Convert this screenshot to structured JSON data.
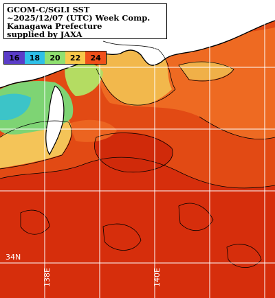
{
  "info": {
    "line1": "GCOM-C/SGLI SST",
    "line2": "~2025/12/07 (UTC) Week Comp.",
    "line3": "Kanagawa Prefecture",
    "line4": "supplied by JAXA"
  },
  "legend": {
    "items": [
      {
        "label": "16",
        "color": "#5a3cc8"
      },
      {
        "label": "18",
        "color": "#2ec0e8"
      },
      {
        "label": "20",
        "color": "#8fe070"
      },
      {
        "label": "22",
        "color": "#f8c84a"
      },
      {
        "label": "24",
        "color": "#f0501a"
      }
    ]
  },
  "grid_labels": {
    "lat_34": "34N",
    "lon_138": "138E",
    "lon_140": "140E"
  },
  "colors": {
    "land": "#ffffff",
    "coastline": "#000000",
    "warm_sea": "#e8521a",
    "hot_sea": "#d8300c",
    "cool_coast": "#f4c458",
    "cold_bay": "#6fd07a",
    "grid": "#ffffff"
  }
}
